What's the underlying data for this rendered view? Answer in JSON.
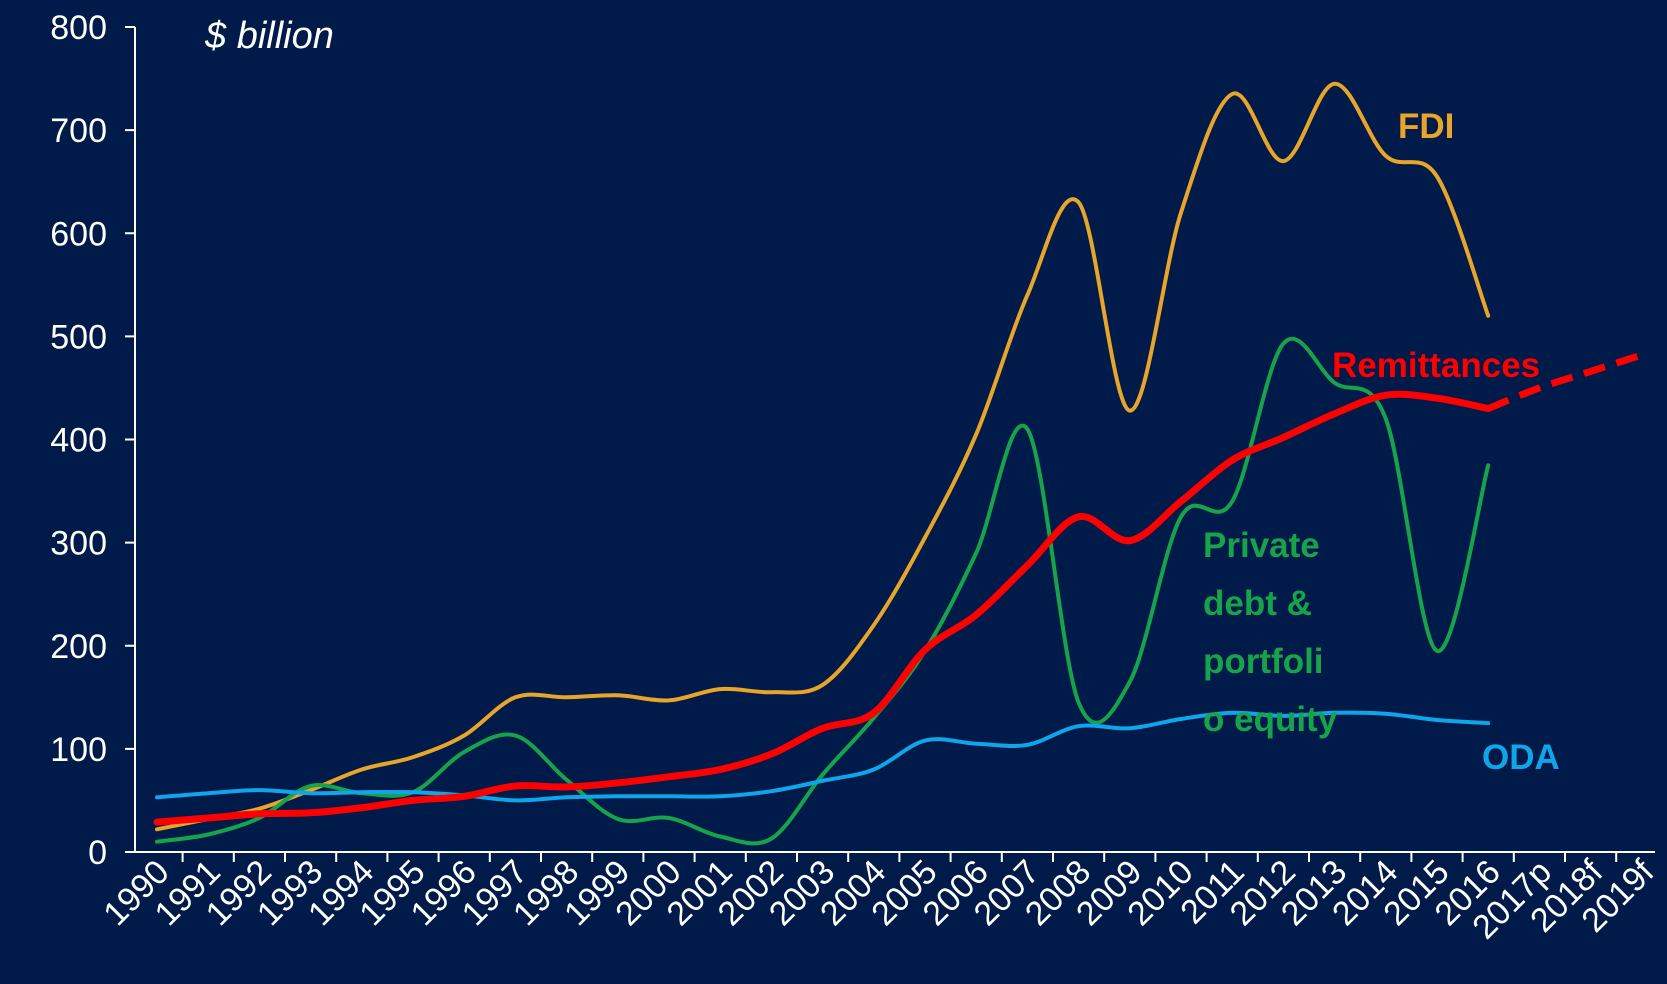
{
  "chart_data": {
    "type": "line",
    "y_unit_label": "$ billion",
    "ylim": [
      0,
      800
    ],
    "y_ticks": [
      "0",
      "100",
      "200",
      "300",
      "400",
      "500",
      "600",
      "700",
      "800"
    ],
    "categories": [
      "1990",
      "1991",
      "1992",
      "1993",
      "1994",
      "1995",
      "1996",
      "1997",
      "1998",
      "1999",
      "2000",
      "2001",
      "2002",
      "2003",
      "2004",
      "2005",
      "2006",
      "2007",
      "2008",
      "2009",
      "2010",
      "2011",
      "2012",
      "2013",
      "2014",
      "2015",
      "2016",
      "2017p",
      "2018f",
      "2019f"
    ],
    "series": [
      {
        "name": "FDI",
        "color": "#e8a52a",
        "values": [
          22,
          32,
          42,
          60,
          80,
          92,
          113,
          150,
          150,
          152,
          147,
          158,
          155,
          162,
          220,
          305,
          405,
          540,
          630,
          428,
          620,
          735,
          670,
          745,
          675,
          655,
          520,
          null,
          null,
          null
        ]
      },
      {
        "name": "Remittances",
        "color": "#ff0000",
        "values": [
          29,
          33,
          37,
          38,
          43,
          50,
          54,
          64,
          63,
          67,
          73,
          80,
          95,
          120,
          135,
          196,
          230,
          278,
          325,
          302,
          340,
          380,
          402,
          425,
          443,
          440,
          430,
          null,
          null,
          null
        ],
        "forecast_values": [
          null,
          null,
          null,
          null,
          null,
          null,
          null,
          null,
          null,
          null,
          null,
          null,
          null,
          null,
          null,
          null,
          null,
          null,
          null,
          null,
          null,
          null,
          null,
          null,
          null,
          null,
          430,
          450,
          466,
          482
        ]
      },
      {
        "name": "Private debt & portfolio equity",
        "label_lines": [
          "Private",
          "debt &",
          "portfoli",
          "o equity"
        ],
        "color": "#16a34a",
        "values": [
          10,
          17,
          33,
          64,
          57,
          58,
          97,
          113,
          70,
          32,
          33,
          15,
          13,
          75,
          130,
          195,
          290,
          410,
          145,
          165,
          325,
          340,
          493,
          455,
          420,
          195,
          375,
          null,
          null,
          null
        ]
      },
      {
        "name": "ODA",
        "color": "#0ea5e9",
        "values": [
          53,
          57,
          60,
          57,
          58,
          58,
          55,
          50,
          53,
          54,
          54,
          54,
          59,
          69,
          80,
          108,
          105,
          104,
          122,
          120,
          129,
          135,
          132,
          135,
          134,
          128,
          125,
          null,
          null,
          null
        ]
      }
    ]
  }
}
